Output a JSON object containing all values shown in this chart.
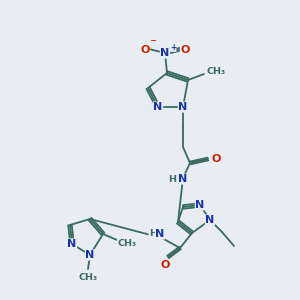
{
  "bg_color": "#e8edf4",
  "colors": {
    "C": "#3a6b5d",
    "N": "#1832b0",
    "O": "#cc2200",
    "bond": "#3a6b5d"
  },
  "figsize": [
    3.0,
    3.0
  ],
  "dpi": 100,
  "xlim": [
    0,
    300
  ],
  "ylim": [
    0,
    300
  ]
}
